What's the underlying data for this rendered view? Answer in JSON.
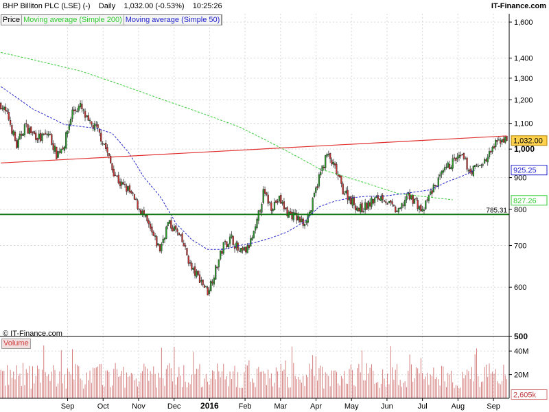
{
  "header": {
    "instrument": "BHP Billiton PLC (LSE) (-)",
    "period": "Daily",
    "quote": "1,032.00 (-0.53%)",
    "time": "10:25:26",
    "brand": "IT-Finance.com"
  },
  "legend": {
    "price": "Price",
    "ma200": "Moving average (Simple 200)",
    "ma50": "Moving average (Simple 50)"
  },
  "copyright": "© IT-Finance.com",
  "volume_label": "Volume",
  "colors": {
    "up": "#2a9a2a",
    "down": "#c83232",
    "ma200": "#33cc33",
    "ma50": "#2222cc",
    "trendline": "#e03030",
    "support": "#117711",
    "volume": "#d07070",
    "grid": "#d8d8d8"
  },
  "chart_data": [
    {
      "type": "line",
      "name": "price",
      "y_scale": "log",
      "ylim": [
        500,
        1650
      ],
      "y_ticks": [
        {
          "value": 1600,
          "label": "1,600"
        },
        {
          "value": 1400,
          "label": "1,400"
        },
        {
          "value": 1300,
          "label": "1,300"
        },
        {
          "value": 1200,
          "label": "1,200"
        },
        {
          "value": 1100,
          "label": "1,100"
        },
        {
          "value": 1000,
          "label": "1,000"
        },
        {
          "value": 900,
          "label": "900"
        },
        {
          "value": 800,
          "label": "800"
        },
        {
          "value": 700,
          "label": "700"
        },
        {
          "value": 600,
          "label": "600"
        },
        {
          "value": 500,
          "label": "500"
        }
      ],
      "x_ticks": [
        "Sep",
        "Oct",
        "Nov",
        "Dec",
        "2016",
        "Feb",
        "Mar",
        "Apr",
        "May",
        "Jun",
        "Jul",
        "Aug",
        "Sep"
      ],
      "price_anchors": [
        [
          0,
          1180
        ],
        [
          5,
          1120
        ],
        [
          10,
          1010
        ],
        [
          15,
          1090
        ],
        [
          20,
          1060
        ],
        [
          25,
          1040
        ],
        [
          30,
          1060
        ],
        [
          35,
          980
        ],
        [
          40,
          1020
        ],
        [
          45,
          1150
        ],
        [
          50,
          1170
        ],
        [
          55,
          1100
        ],
        [
          60,
          1080
        ],
        [
          65,
          1020
        ],
        [
          70,
          930
        ],
        [
          75,
          880
        ],
        [
          80,
          860
        ],
        [
          85,
          820
        ],
        [
          90,
          780
        ],
        [
          95,
          730
        ],
        [
          100,
          690
        ],
        [
          105,
          760
        ],
        [
          110,
          740
        ],
        [
          115,
          700
        ],
        [
          120,
          640
        ],
        [
          125,
          620
        ],
        [
          130,
          590
        ],
        [
          135,
          640
        ],
        [
          140,
          700
        ],
        [
          145,
          720
        ],
        [
          150,
          680
        ],
        [
          155,
          690
        ],
        [
          160,
          740
        ],
        [
          165,
          850
        ],
        [
          170,
          810
        ],
        [
          175,
          830
        ],
        [
          180,
          790
        ],
        [
          185,
          780
        ],
        [
          190,
          760
        ],
        [
          195,
          800
        ],
        [
          200,
          900
        ],
        [
          205,
          980
        ],
        [
          210,
          930
        ],
        [
          215,
          860
        ],
        [
          220,
          830
        ],
        [
          225,
          800
        ],
        [
          230,
          810
        ],
        [
          235,
          830
        ],
        [
          240,
          840
        ],
        [
          245,
          810
        ],
        [
          250,
          790
        ],
        [
          255,
          840
        ],
        [
          260,
          830
        ],
        [
          265,
          790
        ],
        [
          270,
          850
        ],
        [
          275,
          890
        ],
        [
          280,
          930
        ],
        [
          285,
          960
        ],
        [
          290,
          970
        ],
        [
          295,
          920
        ],
        [
          300,
          940
        ],
        [
          305,
          960
        ],
        [
          310,
          1010
        ],
        [
          315,
          1040
        ],
        [
          318,
          1032
        ]
      ],
      "ma200_anchors": [
        [
          0,
          1430
        ],
        [
          50,
          1335
        ],
        [
          100,
          1205
        ],
        [
          150,
          1085
        ],
        [
          200,
          930
        ],
        [
          250,
          848
        ],
        [
          284,
          829
        ]
      ],
      "ma50_anchors": [
        [
          0,
          1260
        ],
        [
          20,
          1160
        ],
        [
          40,
          1095
        ],
        [
          60,
          1080
        ],
        [
          70,
          1060
        ],
        [
          80,
          990
        ],
        [
          90,
          900
        ],
        [
          100,
          840
        ],
        [
          110,
          760
        ],
        [
          120,
          715
        ],
        [
          130,
          690
        ],
        [
          140,
          690
        ],
        [
          150,
          700
        ],
        [
          160,
          708
        ],
        [
          170,
          720
        ],
        [
          180,
          736
        ],
        [
          190,
          762
        ],
        [
          200,
          808
        ],
        [
          210,
          825
        ],
        [
          220,
          835
        ],
        [
          230,
          840
        ],
        [
          240,
          840
        ],
        [
          250,
          846
        ],
        [
          260,
          853
        ],
        [
          270,
          860
        ],
        [
          280,
          885
        ],
        [
          290,
          905
        ],
        [
          298,
          925
        ]
      ],
      "last_values": [
        {
          "name": "price",
          "value": 1032,
          "label": "1,032.00"
        },
        {
          "name": "ma50",
          "value": 925.25,
          "label": "925.25"
        },
        {
          "name": "ma200",
          "value": 827.26,
          "label": "827.26"
        }
      ],
      "support_level": {
        "value": 785.31,
        "label": "785.31"
      },
      "trendline": {
        "from": [
          0,
          950
        ],
        "to": [
          318,
          1050
        ]
      }
    },
    {
      "type": "bar",
      "name": "volume",
      "ylim": [
        0,
        50
      ],
      "y_ticks": [
        {
          "value": 40,
          "label": "40M"
        },
        {
          "value": 20,
          "label": "20M"
        }
      ],
      "last_value": {
        "value": 2.605,
        "label": "2,605k"
      }
    }
  ]
}
